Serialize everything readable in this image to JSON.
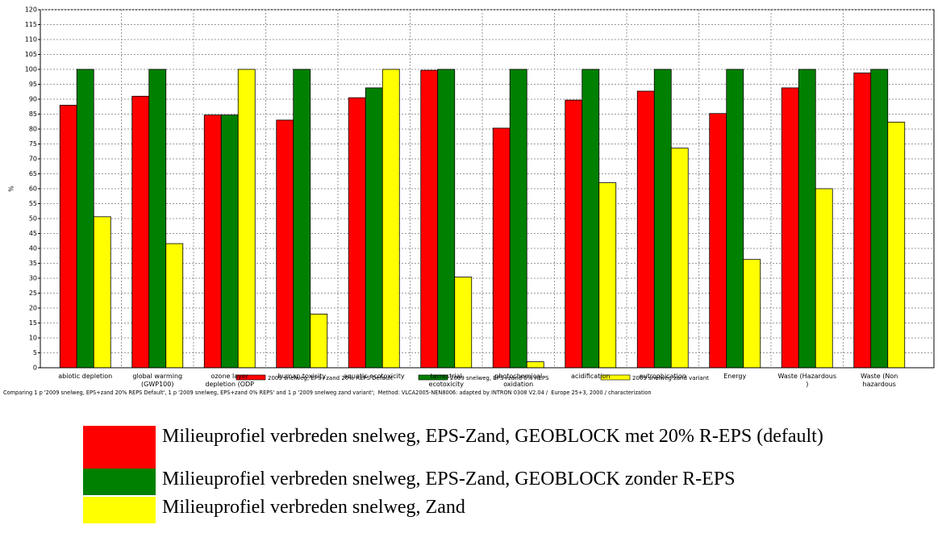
{
  "chart_data": {
    "type": "bar",
    "y_label": "%",
    "categories": [
      "abiotic depletion",
      "global warming\n(GWP100)",
      "ozone layer\ndepletion (ODP",
      "human toxicity",
      "aquatic ecotoxicity",
      "terrestrial\necotoxicity",
      "photochemical\noxidation",
      "acidification",
      "eutrophication",
      "Energy",
      "Waste (Hazardous\n)",
      "Waste (Non\nhazardous"
    ],
    "series": [
      {
        "name": "2009 snelweg, EPS+zand 20% REPS Default",
        "color": "#ff0000",
        "values": [
          88,
          91,
          84.7,
          83,
          90.5,
          99.7,
          80.3,
          89.7,
          92.7,
          85.2,
          93.8,
          98.8
        ]
      },
      {
        "name": "2009 snelweg, EPS+zand 0% REPS",
        "color": "#008000",
        "values": [
          100,
          100,
          84.7,
          100,
          93.8,
          100,
          100,
          100,
          100,
          100,
          100,
          100
        ]
      },
      {
        "name": "2009 snelweg zand variant",
        "color": "#ffff00",
        "values": [
          50.6,
          41.6,
          100,
          18,
          100,
          30.4,
          2,
          62,
          73.6,
          36.3,
          60,
          82.3
        ]
      }
    ],
    "ylim": [
      0,
      120
    ],
    "yticks": [
      0,
      5,
      10,
      15,
      20,
      25,
      30,
      35,
      40,
      45,
      50,
      55,
      60,
      65,
      70,
      75,
      80,
      85,
      90,
      95,
      100,
      105,
      110,
      115,
      120
    ],
    "grid": true,
    "footnote": "Comparing 1 p '2009 snelweg, EPS+zand 20% REPS Default', 1 p '2009 snelweg, EPS+zand 0% REPS' and 1 p '2009 snelweg zand variant';  Method: VLCA2005-NEN8006: adapted by INTRON 0308 V2.04 /  Europe 25+3, 2000 / characterization"
  },
  "caption_legend": [
    " Milieuprofiel verbreden snelweg, EPS-Zand, GEOBLOCK met 20% R-EPS (default)",
    " Milieuprofiel verbreden snelweg, EPS-Zand, GEOBLOCK zonder R-EPS",
    "Milieuprofiel verbreden snelweg, Zand"
  ]
}
